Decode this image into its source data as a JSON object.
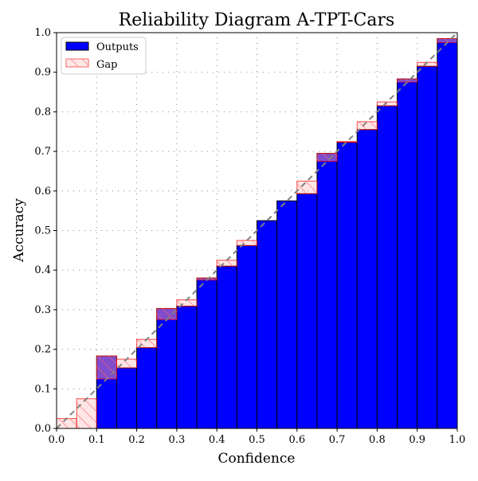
{
  "chart_data": {
    "type": "bar",
    "title": "Reliability Diagram A-TPT-Cars",
    "xlabel": "Confidence",
    "ylabel": "Accuracy",
    "xlim": [
      0,
      1
    ],
    "ylim": [
      0,
      1
    ],
    "xticks": [
      "0.0",
      "0.1",
      "0.2",
      "0.3",
      "0.4",
      "0.5",
      "0.6",
      "0.7",
      "0.8",
      "0.9",
      "1.0"
    ],
    "yticks": [
      "0.0",
      "0.1",
      "0.2",
      "0.3",
      "0.4",
      "0.5",
      "0.6",
      "0.7",
      "0.8",
      "0.9",
      "1.0"
    ],
    "grid": true,
    "legend": {
      "placement": "top-left",
      "entries": [
        "Outputs",
        "Gap"
      ]
    },
    "bin_edges": [
      0,
      0.05,
      0.1,
      0.15,
      0.2,
      0.25,
      0.3,
      0.35,
      0.4,
      0.45,
      0.5,
      0.55,
      0.6,
      0.65,
      0.7,
      0.75,
      0.8,
      0.85,
      0.9,
      0.95,
      1.0
    ],
    "series": [
      {
        "name": "Outputs",
        "values": [
          0,
          0,
          0.183,
          0.153,
          0.204,
          0.303,
          0.309,
          0.38,
          0.41,
          0.462,
          0.525,
          0.575,
          0.593,
          0.695,
          0.723,
          0.755,
          0.815,
          0.883,
          0.915,
          0.985
        ]
      },
      {
        "name": "Gap",
        "values": [
          0.025,
          0.075,
          0.125,
          0.175,
          0.225,
          0.275,
          0.325,
          0.375,
          0.425,
          0.475,
          0.525,
          0.575,
          0.625,
          0.675,
          0.725,
          0.775,
          0.825,
          0.875,
          0.925,
          0.975
        ]
      }
    ],
    "diagonal": "dashed gray identity line",
    "colors": {
      "outputs": "#0000ff",
      "gap_edge": "#ff0000",
      "gap_fill": "#ff9999",
      "diagonal": "#808080"
    }
  }
}
